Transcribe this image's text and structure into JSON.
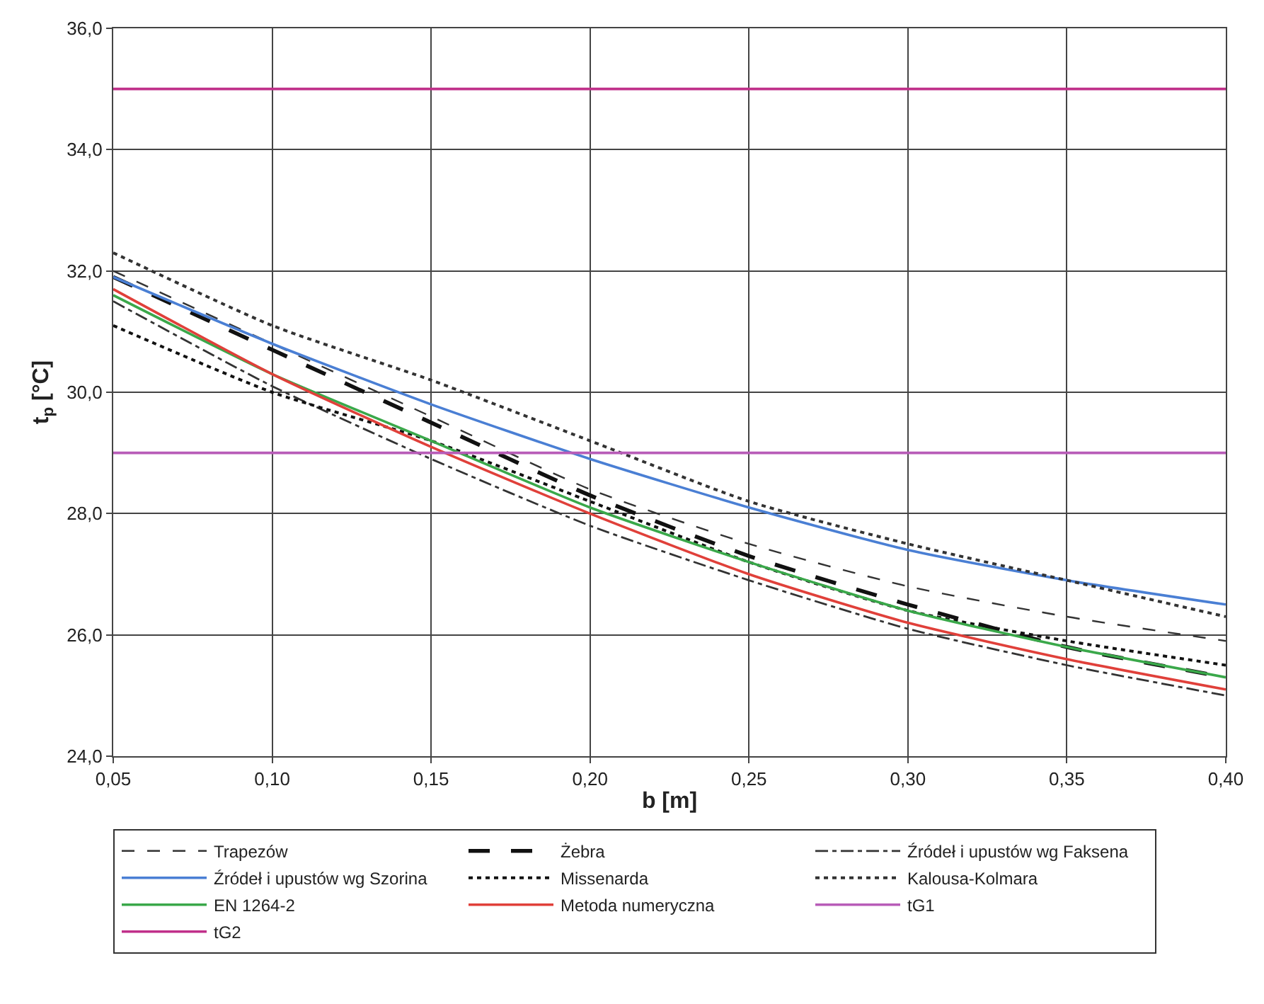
{
  "chart_data": {
    "type": "line",
    "xlabel": "b [m]",
    "ylabel": "t$_{p}$ [°C]",
    "x": [
      0.05,
      0.1,
      0.15,
      0.2,
      0.25,
      0.3,
      0.35,
      0.4
    ],
    "series": [
      {
        "name": "Trapezów",
        "color": "#333333",
        "line_style": "dashed",
        "values": [
          32.0,
          30.8,
          29.6,
          28.4,
          27.5,
          26.8,
          26.3,
          25.9
        ]
      },
      {
        "name": "Żebra",
        "color": "#111111",
        "line_style": "longdash",
        "values": [
          31.9,
          30.7,
          29.5,
          28.3,
          27.3,
          26.5,
          25.8,
          25.3
        ]
      },
      {
        "name": "Źródeł i upustów wg Faksena",
        "color": "#333333",
        "line_style": "dashdot",
        "values": [
          31.5,
          30.1,
          28.9,
          27.8,
          26.9,
          26.1,
          25.5,
          25.0
        ]
      },
      {
        "name": "Źródeł i upustów wg Szorina",
        "color": "#4a7fd4",
        "line_style": "solid",
        "values": [
          31.9,
          30.8,
          29.8,
          28.9,
          28.1,
          27.4,
          26.9,
          26.5
        ]
      },
      {
        "name": "Missenarda",
        "color": "#111111",
        "line_style": "dotted",
        "values": [
          31.1,
          30.0,
          29.2,
          28.2,
          27.2,
          26.4,
          25.9,
          25.5
        ]
      },
      {
        "name": "Kalousa-Kolmara",
        "color": "#333333",
        "line_style": "dotted",
        "values": [
          32.3,
          31.1,
          30.2,
          29.2,
          28.2,
          27.5,
          26.9,
          26.3
        ]
      },
      {
        "name": "EN 1264-2",
        "color": "#3aa84a",
        "line_style": "solid",
        "values": [
          31.6,
          30.3,
          29.2,
          28.1,
          27.2,
          26.4,
          25.8,
          25.3
        ]
      },
      {
        "name": "Metoda numeryczna",
        "color": "#e0403a",
        "line_style": "solid",
        "values": [
          31.7,
          30.3,
          29.1,
          28.0,
          27.0,
          26.2,
          25.6,
          25.1
        ]
      },
      {
        "name": "tG1",
        "color": "#b85cb8",
        "line_style": "solid",
        "values": [
          29.0,
          29.0,
          29.0,
          29.0,
          29.0,
          29.0,
          29.0,
          29.0
        ]
      },
      {
        "name": "tG2",
        "color": "#c0308a",
        "line_style": "solid",
        "values": [
          35.0,
          35.0,
          35.0,
          35.0,
          35.0,
          35.0,
          35.0,
          35.0
        ]
      }
    ],
    "xlim": [
      0.05,
      0.4
    ],
    "xticks": [
      {
        "value": 0.05,
        "label": "0,05"
      },
      {
        "value": 0.1,
        "label": "0,10"
      },
      {
        "value": 0.15,
        "label": "0,15"
      },
      {
        "value": 0.2,
        "label": "0,20"
      },
      {
        "value": 0.25,
        "label": "0,25"
      },
      {
        "value": 0.3,
        "label": "0,30"
      },
      {
        "value": 0.35,
        "label": "0,35"
      },
      {
        "value": 0.4,
        "label": "0,40"
      }
    ],
    "ylim": [
      24,
      36
    ],
    "yticks": [
      {
        "value": 24,
        "label": "24,0"
      },
      {
        "value": 26,
        "label": "26,0"
      },
      {
        "value": 28,
        "label": "28,0"
      },
      {
        "value": 30,
        "label": "30,0"
      },
      {
        "value": 32,
        "label": "32,0"
      },
      {
        "value": 34,
        "label": "34,0"
      },
      {
        "value": 36,
        "label": "36,0"
      }
    ],
    "grid": true,
    "legend": "bottom",
    "marker": "none"
  }
}
